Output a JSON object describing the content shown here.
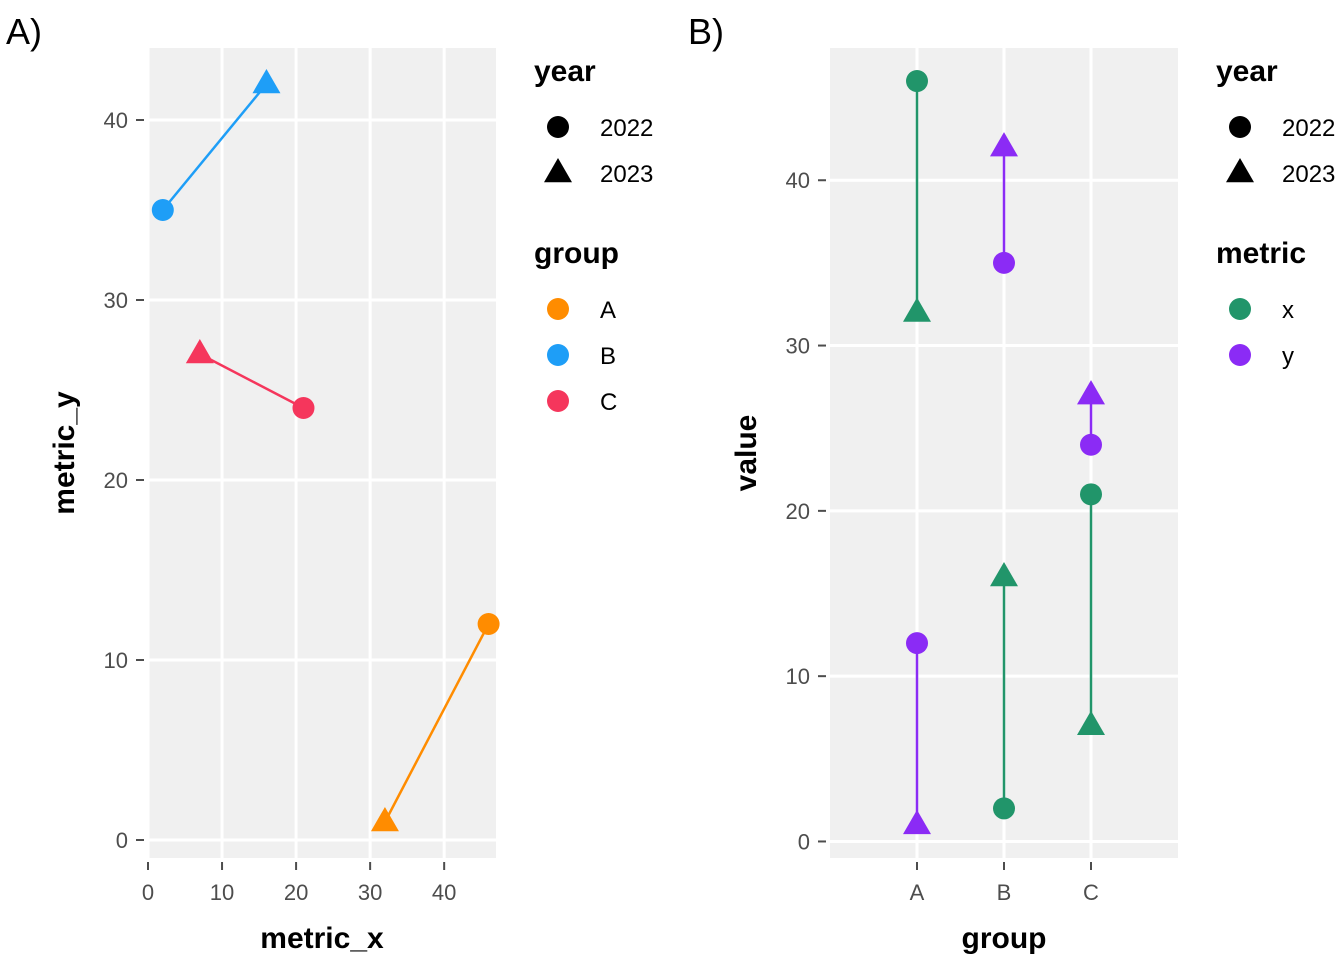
{
  "chart_data": [
    {
      "tag": "A)",
      "type": "scatter",
      "xlabel": "metric_x",
      "ylabel": "metric_y",
      "xlim": [
        0,
        47
      ],
      "ylim": [
        -1,
        44
      ],
      "xticks": [
        0,
        10,
        20,
        30,
        40
      ],
      "yticks": [
        0,
        10,
        20,
        30,
        40
      ],
      "grid": true,
      "series": [
        {
          "name": "A",
          "color": "#FF8C00",
          "points": [
            {
              "year": "2022",
              "x": 46,
              "y": 12
            },
            {
              "year": "2023",
              "x": 32,
              "y": 1
            }
          ]
        },
        {
          "name": "B",
          "color": "#1E9EF7",
          "points": [
            {
              "year": "2022",
              "x": 2,
              "y": 35
            },
            {
              "year": "2023",
              "x": 16,
              "y": 42
            }
          ]
        },
        {
          "name": "C",
          "color": "#F5365C",
          "points": [
            {
              "year": "2022",
              "x": 21,
              "y": 24
            },
            {
              "year": "2023",
              "x": 7,
              "y": 27
            }
          ]
        }
      ],
      "legends": [
        {
          "title": "year",
          "shape_items": [
            {
              "label": "2022",
              "shape": "circle"
            },
            {
              "label": "2023",
              "shape": "triangle"
            }
          ]
        },
        {
          "title": "group",
          "color_items": [
            {
              "label": "A",
              "color": "#FF8C00"
            },
            {
              "label": "B",
              "color": "#1E9EF7"
            },
            {
              "label": "C",
              "color": "#F5365C"
            }
          ]
        }
      ]
    },
    {
      "tag": "B)",
      "type": "scatter",
      "xlabel": "group",
      "ylabel": "value",
      "categories": [
        "A",
        "B",
        "C"
      ],
      "ylim": [
        -1,
        48
      ],
      "yticks": [
        0,
        10,
        20,
        30,
        40
      ],
      "grid": true,
      "series": [
        {
          "name": "x",
          "color": "#21956A",
          "points": [
            {
              "group": "A",
              "year": "2022",
              "y": 46
            },
            {
              "group": "A",
              "year": "2023",
              "y": 32
            },
            {
              "group": "B",
              "year": "2022",
              "y": 2
            },
            {
              "group": "B",
              "year": "2023",
              "y": 16
            },
            {
              "group": "C",
              "year": "2022",
              "y": 21
            },
            {
              "group": "C",
              "year": "2023",
              "y": 7
            }
          ]
        },
        {
          "name": "y",
          "color": "#8B2BF5",
          "points": [
            {
              "group": "A",
              "year": "2022",
              "y": 12
            },
            {
              "group": "A",
              "year": "2023",
              "y": 1
            },
            {
              "group": "B",
              "year": "2022",
              "y": 35
            },
            {
              "group": "B",
              "year": "2023",
              "y": 42
            },
            {
              "group": "C",
              "year": "2022",
              "y": 24
            },
            {
              "group": "C",
              "year": "2023",
              "y": 27
            }
          ]
        }
      ],
      "legends": [
        {
          "title": "year",
          "shape_items": [
            {
              "label": "2022",
              "shape": "circle"
            },
            {
              "label": "2023",
              "shape": "triangle"
            }
          ]
        },
        {
          "title": "metric",
          "color_items": [
            {
              "label": "x",
              "color": "#21956A"
            },
            {
              "label": "y",
              "color": "#8B2BF5"
            }
          ]
        }
      ]
    }
  ]
}
